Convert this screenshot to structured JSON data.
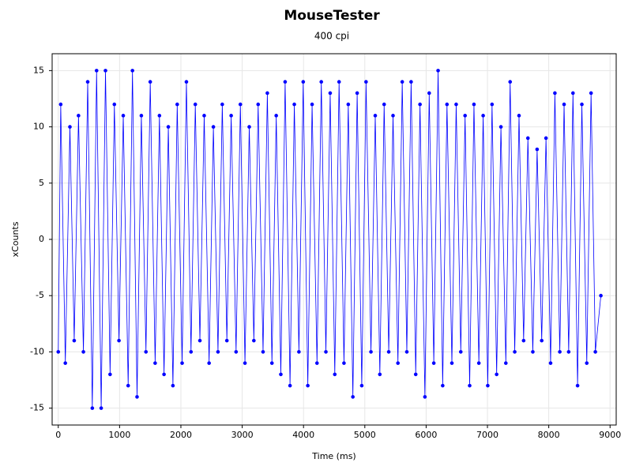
{
  "chart_data": {
    "type": "line",
    "title": "MouseTester",
    "subtitle": "400 cpi",
    "x_label": "Time (ms)",
    "y_label": "xCounts",
    "x": [
      0,
      40,
      115,
      190,
      260,
      330,
      410,
      480,
      555,
      625,
      700,
      770,
      845,
      915,
      990,
      1060,
      1140,
      1210,
      1285,
      1355,
      1430,
      1500,
      1580,
      1650,
      1725,
      1795,
      1870,
      1940,
      2020,
      2090,
      2165,
      2235,
      2310,
      2380,
      2460,
      2530,
      2605,
      2675,
      2750,
      2820,
      2900,
      2970,
      3045,
      3115,
      3190,
      3260,
      3340,
      3410,
      3485,
      3555,
      3630,
      3700,
      3780,
      3850,
      3925,
      3995,
      4070,
      4140,
      4220,
      4290,
      4365,
      4435,
      4510,
      4580,
      4660,
      4730,
      4805,
      4875,
      4950,
      5020,
      5100,
      5170,
      5245,
      5315,
      5390,
      5460,
      5540,
      5610,
      5685,
      5755,
      5830,
      5900,
      5980,
      6050,
      6125,
      6195,
      6270,
      6340,
      6420,
      6490,
      6565,
      6635,
      6710,
      6780,
      6860,
      6930,
      7005,
      7075,
      7150,
      7220,
      7300,
      7370,
      7445,
      7515,
      7590,
      7660,
      7740,
      7810,
      7885,
      7955,
      8030,
      8100,
      8180,
      8250,
      8325,
      8395,
      8470,
      8540,
      8620,
      8690,
      8760,
      8850
    ],
    "series": [
      {
        "color": "#0000ff",
        "values": [
          -10,
          12,
          -11,
          10,
          -9,
          11,
          -10,
          14,
          -15,
          15,
          -15,
          15,
          -12,
          12,
          -9,
          11,
          -13,
          15,
          -14,
          11,
          -10,
          14,
          -11,
          11,
          -12,
          10,
          -13,
          12,
          -11,
          14,
          -10,
          12,
          -9,
          11,
          -11,
          10,
          -10,
          12,
          -9,
          11,
          -10,
          12,
          -11,
          10,
          -9,
          12,
          -10,
          13,
          -11,
          11,
          -12,
          14,
          -13,
          12,
          -10,
          14,
          -13,
          12,
          -11,
          14,
          -10,
          13,
          -12,
          14,
          -11,
          12,
          -14,
          13,
          -13,
          14,
          -10,
          11,
          -12,
          12,
          -10,
          11,
          -11,
          14,
          -10,
          14,
          -12,
          12,
          -14,
          13,
          -11,
          15,
          -13,
          12,
          -11,
          12,
          -10,
          11,
          -13,
          12,
          -11,
          11,
          -13,
          12,
          -12,
          10,
          -11,
          14,
          -10,
          11,
          -9,
          9,
          -10,
          8,
          -9,
          9,
          -11,
          13,
          -10,
          12,
          -10,
          13,
          -13,
          12,
          -11,
          13,
          -10,
          -5
        ]
      }
    ],
    "xlim": [
      -100,
      9100
    ],
    "ylim": [
      -16.5,
      16.5
    ],
    "xticks": [
      0,
      1000,
      2000,
      3000,
      4000,
      5000,
      6000,
      7000,
      8000,
      9000
    ],
    "yticks": [
      -15,
      -10,
      -5,
      0,
      5,
      10,
      15
    ],
    "grid": true
  }
}
